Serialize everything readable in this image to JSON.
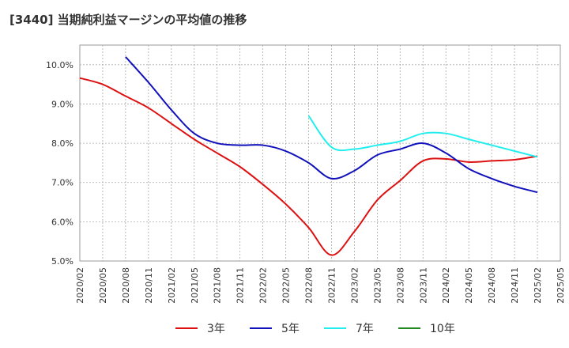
{
  "chart_data": {
    "type": "line",
    "title": "[3440]  当期純利益マージンの平均値の推移",
    "xlabel": "",
    "ylabel": "",
    "ylim": [
      5.0,
      10.5
    ],
    "yticks": [
      "5.0%",
      "6.0%",
      "7.0%",
      "8.0%",
      "9.0%",
      "10.0%"
    ],
    "ytick_values": [
      5.0,
      6.0,
      7.0,
      8.0,
      9.0,
      10.0
    ],
    "grid": true,
    "legend_position": "bottom",
    "categories": [
      "2020/02",
      "2020/05",
      "2020/08",
      "2020/11",
      "2021/02",
      "2021/05",
      "2021/08",
      "2021/11",
      "2022/02",
      "2022/05",
      "2022/08",
      "2022/11",
      "2023/02",
      "2023/05",
      "2023/08",
      "2023/11",
      "2024/02",
      "2024/05",
      "2024/08",
      "2024/11",
      "2025/02",
      "2025/05"
    ],
    "series": [
      {
        "name": "3年",
        "color": "#dd1111",
        "values": [
          9.66,
          9.5,
          9.2,
          8.9,
          8.5,
          8.1,
          7.75,
          7.4,
          6.95,
          6.45,
          5.85,
          5.15,
          5.75,
          6.55,
          7.05,
          7.55,
          7.6,
          7.52,
          7.55,
          7.58,
          7.67,
          null
        ]
      },
      {
        "name": "5年",
        "color": "#1111bb",
        "values": [
          null,
          null,
          10.2,
          9.55,
          8.85,
          8.25,
          8.0,
          7.95,
          7.95,
          7.8,
          7.5,
          7.1,
          7.3,
          7.7,
          7.85,
          8.0,
          7.75,
          7.35,
          7.1,
          6.9,
          6.75,
          null
        ]
      },
      {
        "name": "7年",
        "color": "#22eeee",
        "values": [
          null,
          null,
          null,
          null,
          null,
          null,
          null,
          null,
          null,
          null,
          8.7,
          7.9,
          7.85,
          7.95,
          8.05,
          8.25,
          8.25,
          8.1,
          7.95,
          7.8,
          7.65,
          null
        ]
      },
      {
        "name": "10年",
        "color": "#228822",
        "values": [
          null,
          null,
          null,
          null,
          null,
          null,
          null,
          null,
          null,
          null,
          null,
          null,
          null,
          null,
          null,
          null,
          null,
          null,
          null,
          null,
          null,
          null
        ]
      }
    ]
  }
}
